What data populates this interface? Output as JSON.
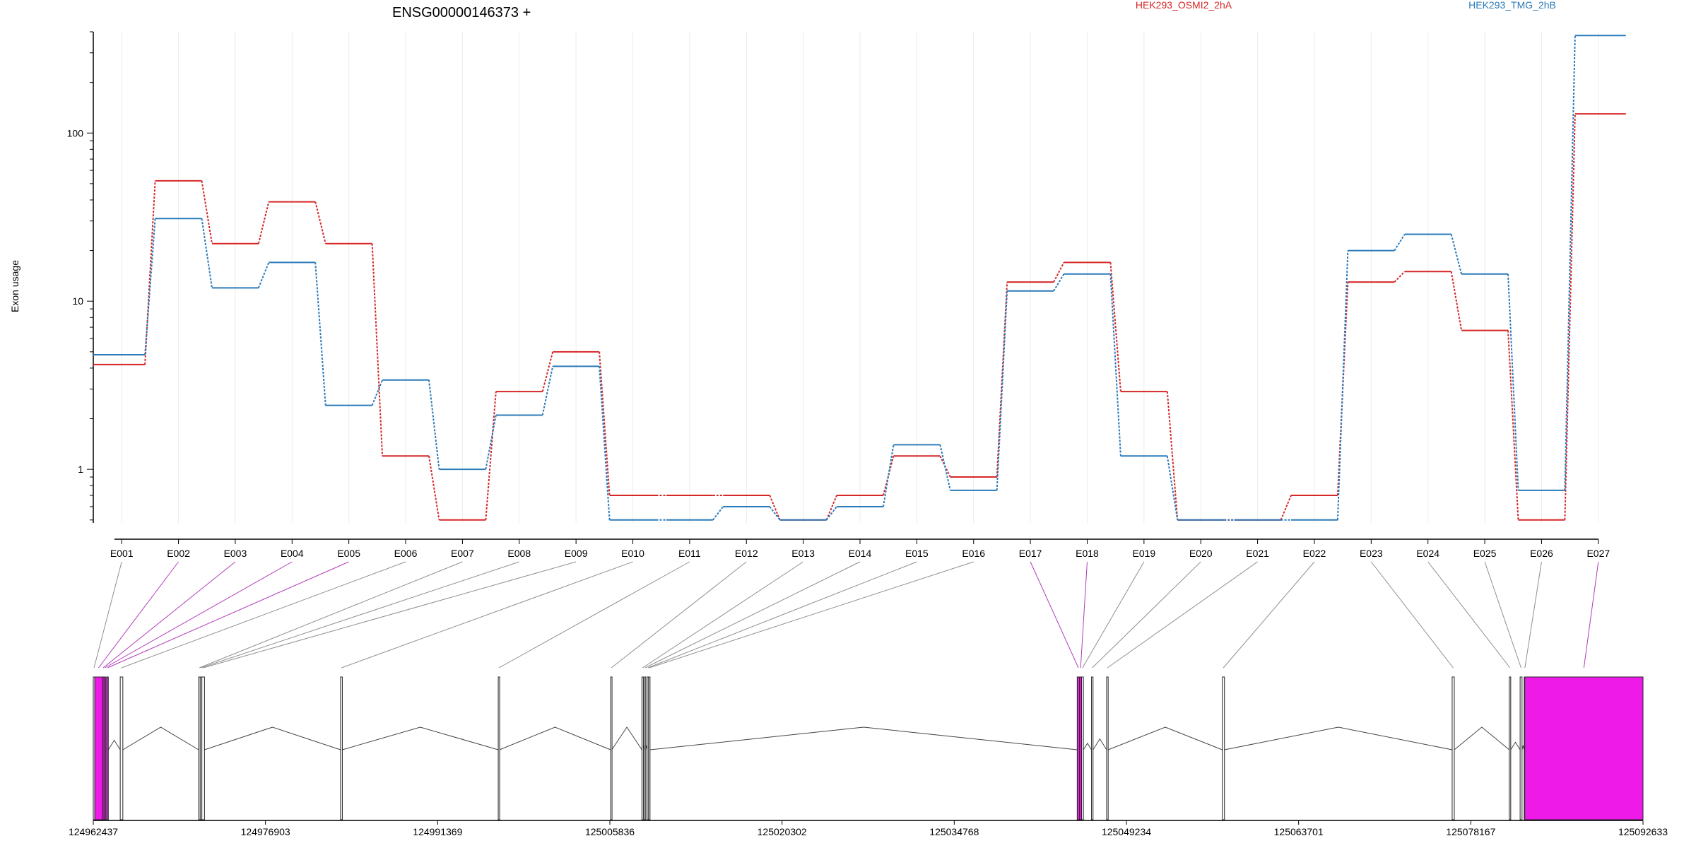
{
  "chart_data": {
    "type": "line",
    "title": "ENSG00000146373 +",
    "ylabel": "Exon usage",
    "yscale": "log",
    "ylim": [
      0.48,
      400
    ],
    "yticks": [
      1,
      10,
      100
    ],
    "ytick_labels": [
      "1",
      "10",
      "100"
    ],
    "grid_x": true,
    "legend_placement": "top",
    "categories": [
      "E001",
      "E002",
      "E003",
      "E004",
      "E005",
      "E006",
      "E007",
      "E008",
      "E009",
      "E010",
      "E011",
      "E012",
      "E013",
      "E014",
      "E015",
      "E016",
      "E017",
      "E018",
      "E019",
      "E020",
      "E021",
      "E022",
      "E023",
      "E024",
      "E025",
      "E026",
      "E027"
    ],
    "series": [
      {
        "name": "HEK293_OSMI2_2hA",
        "color": "#d62728",
        "values": [
          4.2,
          52,
          22,
          39,
          22,
          1.2,
          0.5,
          2.9,
          5.0,
          0.7,
          0.7,
          0.7,
          0.5,
          0.7,
          1.2,
          0.9,
          13,
          17,
          2.9,
          0.5,
          0.5,
          0.7,
          13,
          15,
          6.7,
          0.5,
          130
        ]
      },
      {
        "name": "HEK293_TMG_2hB",
        "color": "#2b7bba",
        "values": [
          4.8,
          31,
          12,
          17,
          2.4,
          3.4,
          1.0,
          2.1,
          4.1,
          0.5,
          0.5,
          0.6,
          0.5,
          0.6,
          1.4,
          0.75,
          11.5,
          14.5,
          1.2,
          0.5,
          0.5,
          0.5,
          20,
          25,
          14.5,
          0.75,
          380
        ]
      }
    ],
    "gene_model": {
      "coordinate_ticks": [
        124962437,
        124976903,
        124991369,
        125005836,
        125020302,
        125034768,
        125049234,
        125063701,
        125078167,
        125092633
      ],
      "range": [
        124962437,
        125092633
      ],
      "highlight_color": "#ee1be8",
      "exons": [
        {
          "id": "E001",
          "start": 124962437,
          "end": 124962560,
          "highlight": false
        },
        {
          "id": "E002",
          "start": 124962560,
          "end": 124963200,
          "highlight": true
        },
        {
          "id": "E003",
          "start": 124963200,
          "end": 124963340,
          "highlight": true
        },
        {
          "id": "E004",
          "start": 124963340,
          "end": 124963470,
          "highlight": true
        },
        {
          "id": "E005",
          "start": 124963550,
          "end": 124963700,
          "highlight": true
        },
        {
          "id": "E006",
          "start": 124964700,
          "end": 124964920,
          "highlight": false
        },
        {
          "id": "E007",
          "start": 124971290,
          "end": 124971420,
          "highlight": false
        },
        {
          "id": "E008",
          "start": 124971420,
          "end": 124971560,
          "highlight": false
        },
        {
          "id": "E009",
          "start": 124971560,
          "end": 124971780,
          "highlight": false
        },
        {
          "id": "E010",
          "start": 124983210,
          "end": 124983360,
          "highlight": false
        },
        {
          "id": "E011",
          "start": 124996460,
          "end": 124996560,
          "highlight": false
        },
        {
          "id": "E012",
          "start": 125005900,
          "end": 125006000,
          "highlight": false
        },
        {
          "id": "E013",
          "start": 125008530,
          "end": 125008620,
          "highlight": false
        },
        {
          "id": "E014",
          "start": 125008730,
          "end": 125008830,
          "highlight": false
        },
        {
          "id": "E015",
          "start": 125008970,
          "end": 125009090,
          "highlight": false
        },
        {
          "id": "E016",
          "start": 125009090,
          "end": 125009210,
          "highlight": false
        },
        {
          "id": "E017",
          "start": 125045100,
          "end": 125045300,
          "highlight": true
        },
        {
          "id": "E018",
          "start": 125045300,
          "end": 125045470,
          "highlight": true
        },
        {
          "id": "E019",
          "start": 125045470,
          "end": 125045620,
          "highlight": false
        },
        {
          "id": "E020",
          "start": 125046300,
          "end": 125046430,
          "highlight": false
        },
        {
          "id": "E021",
          "start": 125047570,
          "end": 125047700,
          "highlight": false
        },
        {
          "id": "E022",
          "start": 125057290,
          "end": 125057470,
          "highlight": false
        },
        {
          "id": "E023",
          "start": 125076600,
          "end": 125076780,
          "highlight": false
        },
        {
          "id": "E024",
          "start": 125081400,
          "end": 125081520,
          "highlight": false
        },
        {
          "id": "E025",
          "start": 125082310,
          "end": 125082470,
          "highlight": false
        },
        {
          "id": "E026",
          "start": 125082650,
          "end": 125082700,
          "highlight": false
        },
        {
          "id": "E027",
          "start": 125082700,
          "end": 125092633,
          "highlight": true
        }
      ]
    }
  }
}
